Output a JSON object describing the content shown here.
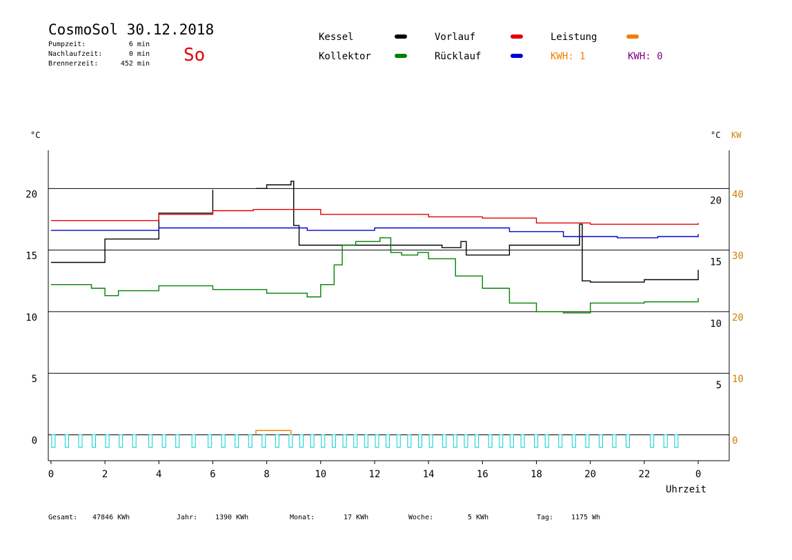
{
  "header": {
    "title": "CosmoSol 30.12.2018",
    "day": "So",
    "stats": [
      {
        "label": "Pumpzeit:",
        "value": "6 min"
      },
      {
        "label": "Nachlaufzeit:",
        "value": "0 min"
      },
      {
        "label": "Brennerzeit:",
        "value": "452 min"
      }
    ],
    "kwh": [
      "KWH: 1",
      "KWH: 0"
    ]
  },
  "chart_data": {
    "type": "line",
    "y_label": "°C",
    "y2_label_left": "°C",
    "y2_label": "KW",
    "x_label": "Uhrzeit",
    "xlim": [
      -0.1,
      25.15
    ],
    "xticks": [
      0,
      2,
      4,
      6,
      8,
      10,
      12,
      14,
      16,
      18,
      20,
      22,
      {
        "value": 24,
        "label": "0"
      }
    ],
    "ylim": [
      -2.1,
      23.1
    ],
    "yticks": [
      0,
      5,
      10,
      15,
      20
    ],
    "yticks_right": [
      5,
      10,
      15,
      20
    ],
    "y2lim": [
      -4.2,
      46.2
    ],
    "y2ticks": [
      0,
      10,
      20,
      30,
      40
    ],
    "grid": true,
    "series": [
      {
        "name": "Kessel",
        "color": "#000000",
        "x": [
          0,
          2,
          4,
          6,
          6.8,
          7.6,
          8,
          8.9,
          9,
          9.2,
          14.5,
          14.5,
          15.2,
          15.4,
          17,
          19.6,
          19.7,
          20,
          22,
          24
        ],
        "values": [
          14.0,
          15.9,
          18.0,
          19.9,
          null,
          20.0,
          20.3,
          20.6,
          17.0,
          15.4,
          15.4,
          15.2,
          15.7,
          14.6,
          15.4,
          17.1,
          12.5,
          12.4,
          12.6,
          13.4
        ]
      },
      {
        "name": "Vorlauf",
        "color": "#e00000",
        "x": [
          0,
          4,
          6,
          7.5,
          9,
          10,
          12,
          14,
          16,
          18,
          20,
          22,
          24
        ],
        "values": [
          17.4,
          17.9,
          18.2,
          18.3,
          18.3,
          17.9,
          17.9,
          17.7,
          17.6,
          17.2,
          17.1,
          17.1,
          17.2
        ]
      },
      {
        "name": "Kollektor",
        "color": "#008000",
        "x": [
          0,
          1.3,
          1.5,
          2,
          2.5,
          4,
          6,
          8,
          9.5,
          10,
          10.5,
          10.8,
          11.3,
          11.7,
          12.2,
          12.6,
          13,
          13.6,
          14,
          15,
          16,
          17,
          18,
          19,
          20,
          22,
          24
        ],
        "values": [
          12.2,
          12.2,
          11.9,
          11.3,
          11.7,
          12.1,
          11.8,
          11.5,
          11.2,
          12.2,
          13.8,
          15.4,
          15.7,
          15.7,
          16.0,
          14.8,
          14.6,
          14.8,
          14.3,
          12.9,
          11.9,
          10.7,
          10.0,
          9.9,
          10.7,
          10.8,
          11.1
        ]
      },
      {
        "name": "Rücklauf",
        "color": "#0000d0",
        "x": [
          0,
          2,
          4,
          9,
          9.5,
          12,
          16,
          17,
          19,
          21,
          22.5,
          24
        ],
        "values": [
          16.6,
          16.6,
          16.8,
          16.8,
          16.6,
          16.8,
          16.8,
          16.5,
          16.1,
          16.0,
          16.1,
          16.3
        ]
      },
      {
        "name": "Leistung",
        "color": "#f08000",
        "axis": "y2",
        "x": [
          7.6,
          7.6,
          8.9,
          8.9
        ],
        "values": [
          0,
          0.7,
          0.7,
          0
        ]
      }
    ],
    "pump_pulses": [
      0,
      0.5,
      1,
      1.5,
      2,
      2.5,
      3,
      3.6,
      4.1,
      4.6,
      5.2,
      5.8,
      6.3,
      6.8,
      7.3,
      7.8,
      8.3,
      8.8,
      9.2,
      9.6,
      10,
      10.4,
      10.8,
      11.2,
      11.6,
      12,
      12.4,
      12.8,
      13.2,
      13.6,
      14,
      14.5,
      14.9,
      15.3,
      15.7,
      16.2,
      16.6,
      17,
      17.4,
      17.9,
      18.3,
      18.8,
      19.3,
      19.8,
      20.3,
      20.8,
      21.3,
      22.2,
      22.7,
      23.1
    ]
  },
  "footer": [
    {
      "label": "Gesamt:",
      "value": "47846 KWh"
    },
    {
      "label": "Jahr:",
      "value": "1390 KWh"
    },
    {
      "label": "Monat:",
      "value": "17 KWh"
    },
    {
      "label": "Woche:",
      "value": "5 KWh"
    },
    {
      "label": "Tag:",
      "value": "1175 Wh"
    }
  ]
}
